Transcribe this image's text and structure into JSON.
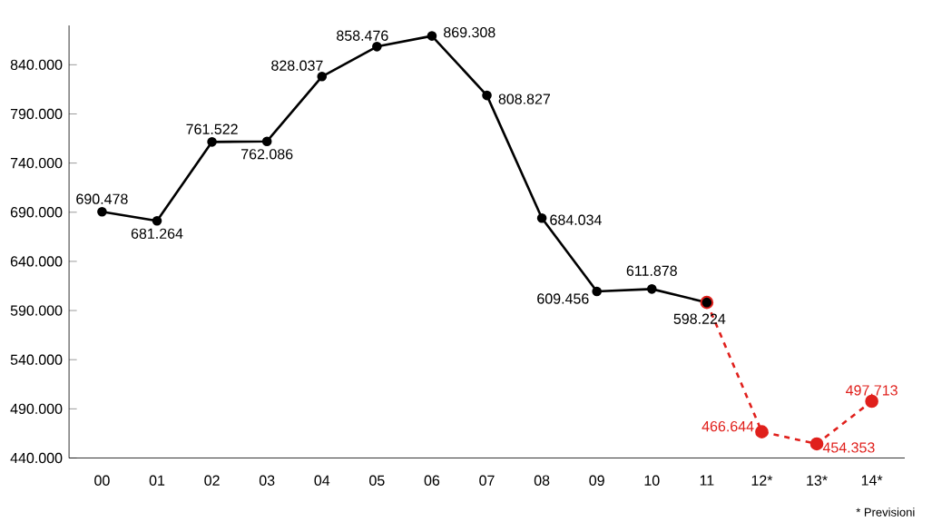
{
  "chart_data": {
    "type": "line",
    "categories": [
      "00",
      "01",
      "02",
      "03",
      "04",
      "05",
      "06",
      "07",
      "08",
      "09",
      "10",
      "11",
      "12*",
      "13*",
      "14*"
    ],
    "series": [
      {
        "color": "#e0201c",
        "line_style": "dashed",
        "values": [
          null,
          null,
          null,
          null,
          null,
          null,
          null,
          null,
          null,
          null,
          null,
          598224,
          466644,
          454353,
          497713
        ],
        "value_labels": [
          null,
          null,
          null,
          null,
          null,
          null,
          null,
          null,
          null,
          null,
          null,
          null,
          "466.644",
          "454.353",
          "497.713"
        ]
      },
      {
        "color": "#000000",
        "line_style": "solid",
        "values": [
          690478,
          681264,
          761522,
          762086,
          828037,
          858476,
          869308,
          808827,
          684034,
          609456,
          611878,
          598224,
          null,
          null,
          null
        ],
        "value_labels": [
          "690.478",
          "681.264",
          "761.522",
          "762.086",
          "828.037",
          "858.476",
          "869.308",
          "808.827",
          "684.034",
          "609.456",
          "611.878",
          "598.224",
          null,
          null,
          null
        ]
      }
    ],
    "ylim": [
      440000,
      880000
    ],
    "yticks": [
      {
        "value": 440000,
        "label": "440.000"
      },
      {
        "value": 490000,
        "label": "490.000"
      },
      {
        "value": 540000,
        "label": "540.000"
      },
      {
        "value": 590000,
        "label": "590.000"
      },
      {
        "value": 640000,
        "label": "640.000"
      },
      {
        "value": 690000,
        "label": "690.000"
      },
      {
        "value": 740000,
        "label": "740.000"
      },
      {
        "value": 790000,
        "label": "790.000"
      },
      {
        "value": 840000,
        "label": "840.000"
      }
    ],
    "marker": "circle",
    "grid": false,
    "annotations": [
      "* Previsioni"
    ]
  }
}
